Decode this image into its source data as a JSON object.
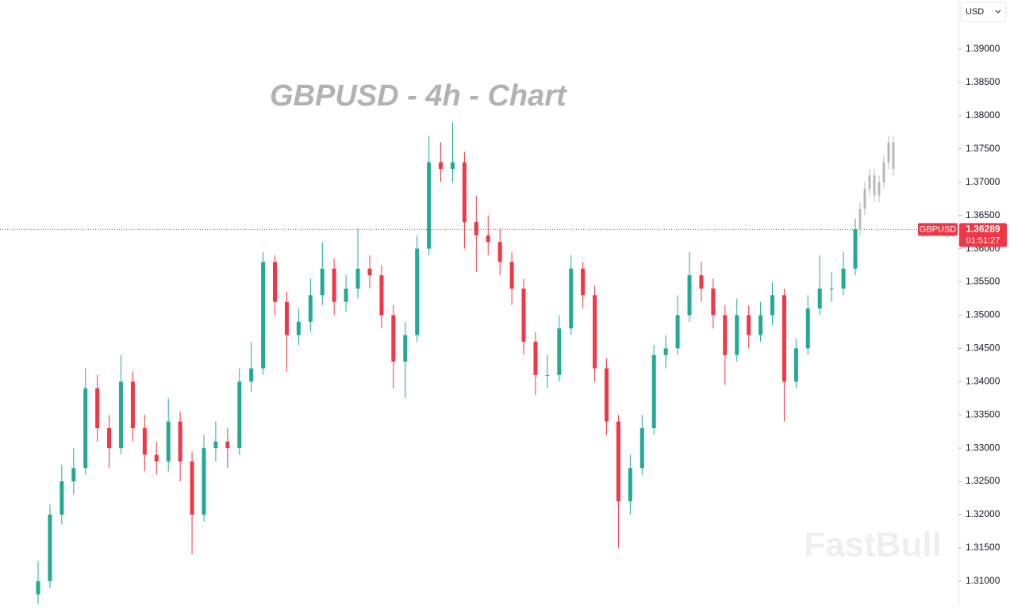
{
  "chart_data": {
    "type": "candlestick",
    "title": "GBPUSD - 4h - Chart",
    "symbol": "GBPUSD",
    "currency": "USD",
    "watermark": "FastBull",
    "ylim": [
      1.3064,
      1.3974
    ],
    "yticks": [
      {
        "value": 1.31,
        "label": "1.31000"
      },
      {
        "value": 1.315,
        "label": "1.31500"
      },
      {
        "value": 1.32,
        "label": "1.32000"
      },
      {
        "value": 1.325,
        "label": "1.32500"
      },
      {
        "value": 1.33,
        "label": "1.33000"
      },
      {
        "value": 1.335,
        "label": "1.33500"
      },
      {
        "value": 1.34,
        "label": "1.34000"
      },
      {
        "value": 1.345,
        "label": "1.34500"
      },
      {
        "value": 1.35,
        "label": "1.35000"
      },
      {
        "value": 1.355,
        "label": "1.35500"
      },
      {
        "value": 1.36,
        "label": "1.36000"
      },
      {
        "value": 1.365,
        "label": "1.36500"
      },
      {
        "value": 1.37,
        "label": "1.37000"
      },
      {
        "value": 1.375,
        "label": "1.37500"
      },
      {
        "value": 1.38,
        "label": "1.38000"
      },
      {
        "value": 1.385,
        "label": "1.38500"
      },
      {
        "value": 1.39,
        "label": "1.39000"
      }
    ],
    "last_price": {
      "value": 1.36289,
      "label": "1.36289"
    },
    "countdown": "01:51:27",
    "up_color": "#22ab94",
    "down_color": "#f23645",
    "projection_color": "#b8b8b8",
    "open": [
      1.308,
      1.31,
      1.32,
      1.325,
      1.327,
      1.339,
      1.333,
      1.33,
      1.34,
      1.333,
      1.329,
      1.328,
      1.334,
      1.328,
      1.32,
      1.33,
      1.331,
      1.33,
      1.34,
      1.342,
      1.358,
      1.352,
      1.347,
      1.349,
      1.353,
      1.357,
      1.352,
      1.354,
      1.357,
      1.356,
      1.35,
      1.343,
      1.347,
      1.36,
      1.373,
      1.372,
      1.373,
      1.364,
      1.362,
      1.361,
      1.358,
      1.354,
      1.346,
      1.341,
      1.341,
      1.348,
      1.357,
      1.353,
      1.342,
      1.334,
      1.322,
      1.327,
      1.333,
      1.344,
      1.345,
      1.35,
      1.356,
      1.354,
      1.35,
      1.344,
      1.35,
      1.347,
      1.35,
      1.353,
      1.34,
      1.345,
      1.351,
      1.354,
      1.354,
      1.357
    ],
    "high": [
      1.313,
      1.3215,
      1.3275,
      1.33,
      1.342,
      1.341,
      1.335,
      1.344,
      1.3415,
      1.335,
      1.331,
      1.3375,
      1.3355,
      1.3295,
      1.332,
      1.334,
      1.333,
      1.342,
      1.346,
      1.3595,
      1.359,
      1.3535,
      1.351,
      1.3555,
      1.361,
      1.3585,
      1.356,
      1.363,
      1.359,
      1.3575,
      1.3515,
      1.349,
      1.362,
      1.377,
      1.376,
      1.379,
      1.3745,
      1.368,
      1.365,
      1.363,
      1.3595,
      1.3555,
      1.3475,
      1.344,
      1.35,
      1.359,
      1.358,
      1.3545,
      1.3435,
      1.335,
      1.329,
      1.335,
      1.3455,
      1.347,
      1.353,
      1.3595,
      1.358,
      1.3555,
      1.3515,
      1.3525,
      1.3515,
      1.352,
      1.355,
      1.354,
      1.3465,
      1.353,
      1.359,
      1.3565,
      1.3595,
      1.3645
    ],
    "low": [
      1.3065,
      1.309,
      1.3185,
      1.323,
      1.326,
      1.331,
      1.327,
      1.329,
      1.331,
      1.3265,
      1.326,
      1.3265,
      1.325,
      1.314,
      1.319,
      1.328,
      1.327,
      1.329,
      1.3385,
      1.341,
      1.35,
      1.3415,
      1.3455,
      1.3475,
      1.3515,
      1.35,
      1.3505,
      1.3525,
      1.354,
      1.348,
      1.339,
      1.3375,
      1.346,
      1.359,
      1.37,
      1.37,
      1.36,
      1.3565,
      1.359,
      1.356,
      1.3515,
      1.344,
      1.338,
      1.339,
      1.34,
      1.347,
      1.351,
      1.34,
      1.332,
      1.315,
      1.32,
      1.326,
      1.332,
      1.342,
      1.344,
      1.349,
      1.352,
      1.348,
      1.3395,
      1.343,
      1.345,
      1.346,
      1.3485,
      1.334,
      1.339,
      1.344,
      1.35,
      1.352,
      1.353,
      1.356
    ],
    "close": [
      1.31,
      1.32,
      1.325,
      1.327,
      1.339,
      1.333,
      1.33,
      1.34,
      1.333,
      1.329,
      1.328,
      1.334,
      1.328,
      1.32,
      1.33,
      1.331,
      1.33,
      1.34,
      1.342,
      1.358,
      1.352,
      1.347,
      1.349,
      1.353,
      1.357,
      1.352,
      1.354,
      1.357,
      1.356,
      1.35,
      1.343,
      1.347,
      1.36,
      1.373,
      1.372,
      1.373,
      1.364,
      1.362,
      1.361,
      1.358,
      1.354,
      1.346,
      1.341,
      1.341,
      1.348,
      1.357,
      1.353,
      1.342,
      1.334,
      1.322,
      1.327,
      1.333,
      1.344,
      1.345,
      1.35,
      1.356,
      1.354,
      1.35,
      1.344,
      1.35,
      1.347,
      1.35,
      1.353,
      1.34,
      1.345,
      1.351,
      1.354,
      1.354,
      1.357,
      1.3629
    ],
    "projection": {
      "open": [
        1.363,
        1.366,
        1.369,
        1.371,
        1.368,
        1.37,
        1.373,
        1.376
      ],
      "high": [
        1.367,
        1.37,
        1.372,
        1.372,
        1.371,
        1.374,
        1.377,
        1.377
      ],
      "low": [
        1.362,
        1.365,
        1.368,
        1.367,
        1.367,
        1.369,
        1.372,
        1.371
      ],
      "close": [
        1.366,
        1.369,
        1.371,
        1.368,
        1.37,
        1.373,
        1.376,
        1.372
      ]
    }
  }
}
